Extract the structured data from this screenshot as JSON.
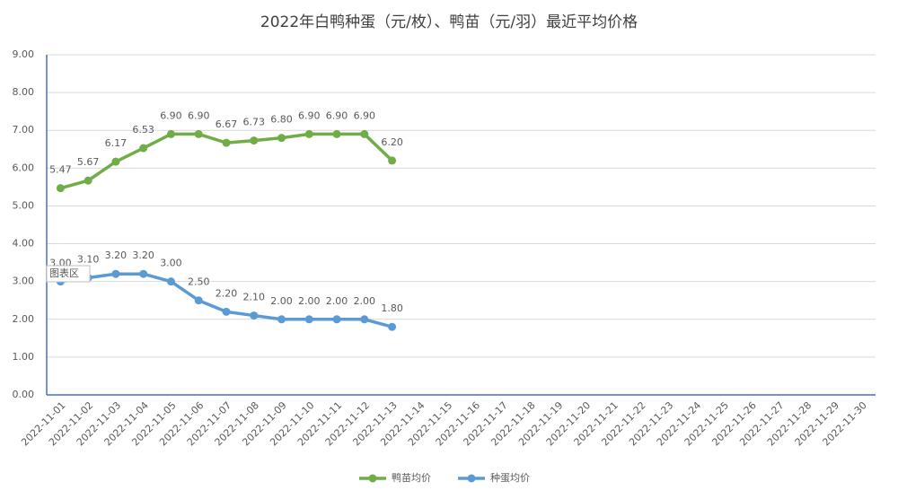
{
  "chart_data": {
    "type": "line",
    "title": "2022年白鸭种蛋（元/枚）、鸭苗（元/羽）最近平均价格",
    "categories": [
      "2022-11-01",
      "2022-11-02",
      "2022-11-03",
      "2022-11-04",
      "2022-11-05",
      "2022-11-06",
      "2022-11-07",
      "2022-11-08",
      "2022-11-09",
      "2022-11-10",
      "2022-11-11",
      "2022-11-12",
      "2022-11-13",
      "2022-11-14",
      "2022-11-15",
      "2022-11-16",
      "2022-11-17",
      "2022-11-18",
      "2022-11-19",
      "2022-11-20",
      "2022-11-21",
      "2022-11-22",
      "2022-11-23",
      "2022-11-24",
      "2022-11-25",
      "2022-11-26",
      "2022-11-27",
      "2022-11-28",
      "2022-11-29",
      "2022-11-30"
    ],
    "series": [
      {
        "name": "鸭苗均价",
        "color": "#70ad47",
        "values": [
          5.47,
          5.67,
          6.17,
          6.53,
          6.9,
          6.9,
          6.67,
          6.73,
          6.8,
          6.9,
          6.9,
          6.9,
          6.2,
          null,
          null,
          null,
          null,
          null,
          null,
          null,
          null,
          null,
          null,
          null,
          null,
          null,
          null,
          null,
          null,
          null
        ],
        "value_labels": [
          "5.47",
          "5.67",
          "6.17",
          "6.53",
          "6.90",
          "6.90",
          "6.67",
          "6.73",
          "6.80",
          "6.90",
          "6.90",
          "6.90",
          "6.20",
          null,
          null,
          null,
          null,
          null,
          null,
          null,
          null,
          null,
          null,
          null,
          null,
          null,
          null,
          null,
          null,
          null
        ]
      },
      {
        "name": "种蛋均价",
        "color": "#5b9bd5",
        "values": [
          3.0,
          3.1,
          3.2,
          3.2,
          3.0,
          2.5,
          2.2,
          2.1,
          2.0,
          2.0,
          2.0,
          2.0,
          1.8,
          null,
          null,
          null,
          null,
          null,
          null,
          null,
          null,
          null,
          null,
          null,
          null,
          null,
          null,
          null,
          null,
          null
        ],
        "value_labels": [
          "3.00",
          "3.10",
          "3.20",
          "3.20",
          "3.00",
          "2.50",
          "2.20",
          "2.10",
          "2.00",
          "2.00",
          "2.00",
          "2.00",
          "1.80",
          null,
          null,
          null,
          null,
          null,
          null,
          null,
          null,
          null,
          null,
          null,
          null,
          null,
          null,
          null,
          null,
          null
        ]
      }
    ],
    "ylim": [
      0,
      9
    ],
    "yticks": [
      {
        "value": 0,
        "label": "0.00"
      },
      {
        "value": 1,
        "label": "1.00"
      },
      {
        "value": 2,
        "label": "2.00"
      },
      {
        "value": 3,
        "label": "3.00"
      },
      {
        "value": 4,
        "label": "4.00"
      },
      {
        "value": 5,
        "label": "5.00"
      },
      {
        "value": 6,
        "label": "6.00"
      },
      {
        "value": 7,
        "label": "7.00"
      },
      {
        "value": 8,
        "label": "8.00"
      },
      {
        "value": 9,
        "label": "9.00"
      }
    ],
    "grid": true,
    "legend": "bottom",
    "annotation": "图表区"
  }
}
